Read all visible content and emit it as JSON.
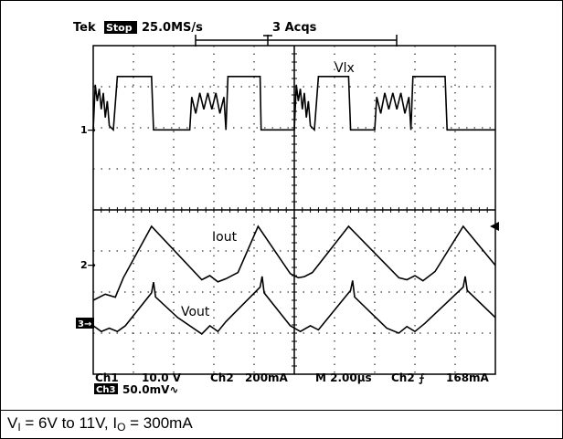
{
  "scope": {
    "header": {
      "brand": "Tek",
      "run_state": "Stop",
      "sample_rate": "25.0MS/s",
      "acquisitions": "3 Acqs"
    },
    "footer": {
      "ch1_label": "Ch1",
      "ch1_scale": "10.0 V",
      "ch2_label": "Ch2",
      "ch2_scale": "200mA",
      "time_base": "M 2.00µs",
      "trigger_source": "Ch2",
      "trigger_slope": "⨍",
      "trigger_level": "168mA",
      "ch3_tag": "Ch3",
      "ch3_scale": "50.0mV∿"
    },
    "channel_markers": {
      "ch1": "1→",
      "ch2": "2→",
      "ch3": "3→"
    },
    "colors": {
      "trace": "#000000",
      "grid": "#000000",
      "background": "#ffffff"
    }
  },
  "chart_data": {
    "type": "line",
    "title": "",
    "xlabel": "",
    "ylabel": "",
    "x_unit": "µs",
    "time_per_division": 2.0,
    "divisions": {
      "x": 10,
      "y": 8
    },
    "xlim": [
      0,
      20
    ],
    "series": [
      {
        "name": "Vlx",
        "channel": "Ch1",
        "unit": "V",
        "volts_per_div": 10.0,
        "points": [
          [
            0.0,
            0
          ],
          [
            0.1,
            11
          ],
          [
            0.2,
            7
          ],
          [
            0.3,
            10
          ],
          [
            0.4,
            5
          ],
          [
            0.5,
            9
          ],
          [
            0.6,
            3
          ],
          [
            0.7,
            7
          ],
          [
            0.8,
            1
          ],
          [
            1.0,
            0
          ],
          [
            1.2,
            13
          ],
          [
            2.9,
            13
          ],
          [
            3.0,
            0
          ],
          [
            4.8,
            0
          ],
          [
            4.9,
            8
          ],
          [
            5.1,
            4
          ],
          [
            5.3,
            9
          ],
          [
            5.5,
            5
          ],
          [
            5.7,
            9
          ],
          [
            5.9,
            5
          ],
          [
            6.1,
            9
          ],
          [
            6.3,
            4
          ],
          [
            6.5,
            8
          ],
          [
            6.6,
            0
          ],
          [
            6.7,
            13
          ],
          [
            8.3,
            13
          ],
          [
            8.35,
            0
          ],
          [
            10.0,
            0
          ],
          [
            10.1,
            11
          ],
          [
            10.2,
            7
          ],
          [
            10.3,
            10
          ],
          [
            10.4,
            5
          ],
          [
            10.5,
            9
          ],
          [
            10.6,
            3
          ],
          [
            10.7,
            7
          ],
          [
            10.8,
            1
          ],
          [
            11.0,
            0
          ],
          [
            11.2,
            13
          ],
          [
            12.7,
            13
          ],
          [
            12.8,
            0
          ],
          [
            14.0,
            0
          ],
          [
            14.1,
            8
          ],
          [
            14.3,
            4
          ],
          [
            14.5,
            9
          ],
          [
            14.7,
            5
          ],
          [
            14.9,
            9
          ],
          [
            15.1,
            5
          ],
          [
            15.3,
            9
          ],
          [
            15.5,
            4
          ],
          [
            15.7,
            8
          ],
          [
            15.8,
            0
          ],
          [
            15.9,
            13
          ],
          [
            17.5,
            13
          ],
          [
            17.6,
            0
          ],
          [
            20.0,
            0
          ]
        ]
      },
      {
        "name": "Iout",
        "channel": "Ch2",
        "unit": "mA",
        "mA_per_div": 200,
        "points": [
          [
            0.0,
            80
          ],
          [
            0.6,
            110
          ],
          [
            1.1,
            95
          ],
          [
            1.5,
            190
          ],
          [
            2.9,
            440
          ],
          [
            5.4,
            180
          ],
          [
            5.8,
            200
          ],
          [
            6.2,
            170
          ],
          [
            6.6,
            185
          ],
          [
            7.2,
            215
          ],
          [
            8.2,
            440
          ],
          [
            9.8,
            210
          ],
          [
            10.2,
            190
          ],
          [
            10.5,
            195
          ],
          [
            10.9,
            215
          ],
          [
            12.7,
            440
          ],
          [
            15.2,
            190
          ],
          [
            15.6,
            180
          ],
          [
            16.0,
            200
          ],
          [
            16.4,
            175
          ],
          [
            17.0,
            220
          ],
          [
            18.4,
            440
          ],
          [
            20.0,
            250
          ]
        ]
      },
      {
        "name": "Vout",
        "channel": "Ch3",
        "unit": "mV",
        "mV_per_div": 50.0,
        "points": [
          [
            0.0,
            -5
          ],
          [
            0.4,
            -12
          ],
          [
            0.8,
            -8
          ],
          [
            1.2,
            -12
          ],
          [
            1.6,
            -5
          ],
          [
            2.9,
            35
          ],
          [
            3.0,
            48
          ],
          [
            3.1,
            30
          ],
          [
            4.2,
            5
          ],
          [
            5.4,
            -15
          ],
          [
            5.8,
            -5
          ],
          [
            6.2,
            -12
          ],
          [
            6.6,
            0
          ],
          [
            8.3,
            42
          ],
          [
            8.4,
            55
          ],
          [
            8.5,
            35
          ],
          [
            9.8,
            -5
          ],
          [
            10.3,
            -12
          ],
          [
            10.8,
            -5
          ],
          [
            11.2,
            -10
          ],
          [
            12.8,
            38
          ],
          [
            12.9,
            50
          ],
          [
            13.0,
            30
          ],
          [
            14.6,
            -8
          ],
          [
            15.2,
            -14
          ],
          [
            15.6,
            -6
          ],
          [
            16.0,
            -12
          ],
          [
            16.5,
            -2
          ],
          [
            18.4,
            42
          ],
          [
            18.5,
            55
          ],
          [
            18.6,
            38
          ],
          [
            20.0,
            5
          ]
        ]
      }
    ]
  }
}
